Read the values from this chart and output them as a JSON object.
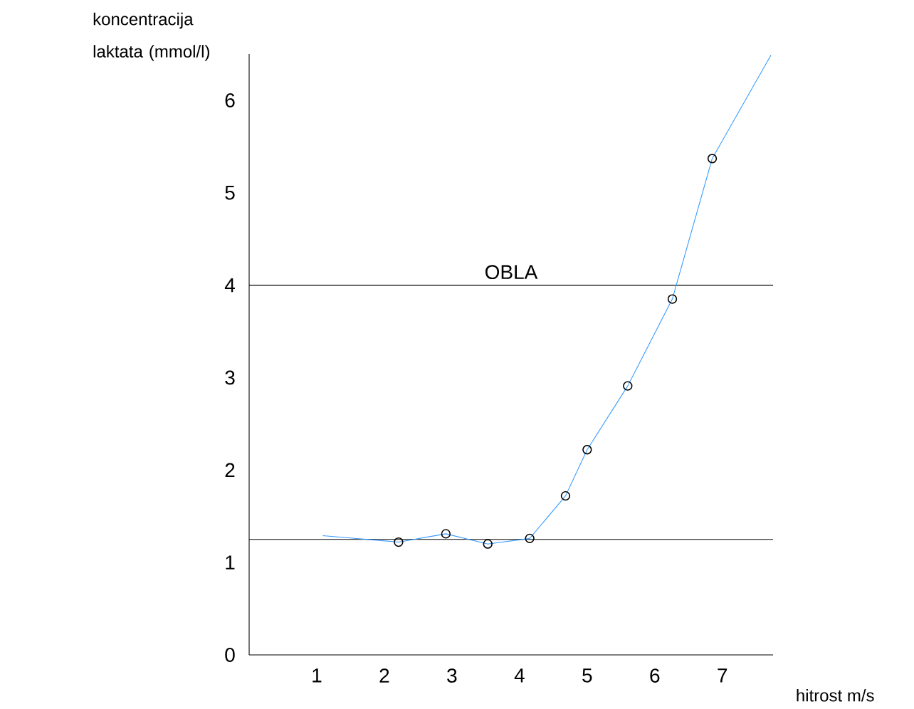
{
  "chart_data": {
    "type": "line",
    "xlabel": "hitrost m/s",
    "ylabel": "koncentracija laktata (mmol/l)",
    "xlim": [
      0,
      7.75
    ],
    "ylim": [
      0,
      6.5
    ],
    "xticks": [
      1,
      2,
      3,
      4,
      5,
      6,
      7
    ],
    "yticks": [
      0,
      1,
      2,
      3,
      4,
      5,
      6
    ],
    "grid": false,
    "series": [
      {
        "color": "#3399ff",
        "marker": "none",
        "x": [
          1.09,
          2.21,
          2.91,
          3.53,
          4.15,
          4.68,
          5.0,
          5.6,
          6.26,
          6.85,
          7.72
        ],
        "values": [
          1.29,
          1.22,
          1.31,
          1.2,
          1.26,
          1.72,
          2.22,
          2.91,
          3.85,
          5.37,
          6.49
        ]
      },
      {
        "type": "scatter",
        "color": "#000000",
        "marker": "circle",
        "x": [
          2.21,
          2.91,
          3.53,
          4.15,
          4.68,
          5.0,
          5.6,
          6.26,
          6.85
        ],
        "values": [
          1.22,
          1.31,
          1.2,
          1.26,
          1.72,
          2.22,
          2.91,
          3.85,
          5.37
        ]
      }
    ],
    "ref_lines": [
      {
        "axis": "y",
        "value": 4,
        "label": "OBLA",
        "color": "#000000"
      },
      {
        "axis": "y",
        "value": 1.25,
        "color": "#000000"
      }
    ]
  }
}
